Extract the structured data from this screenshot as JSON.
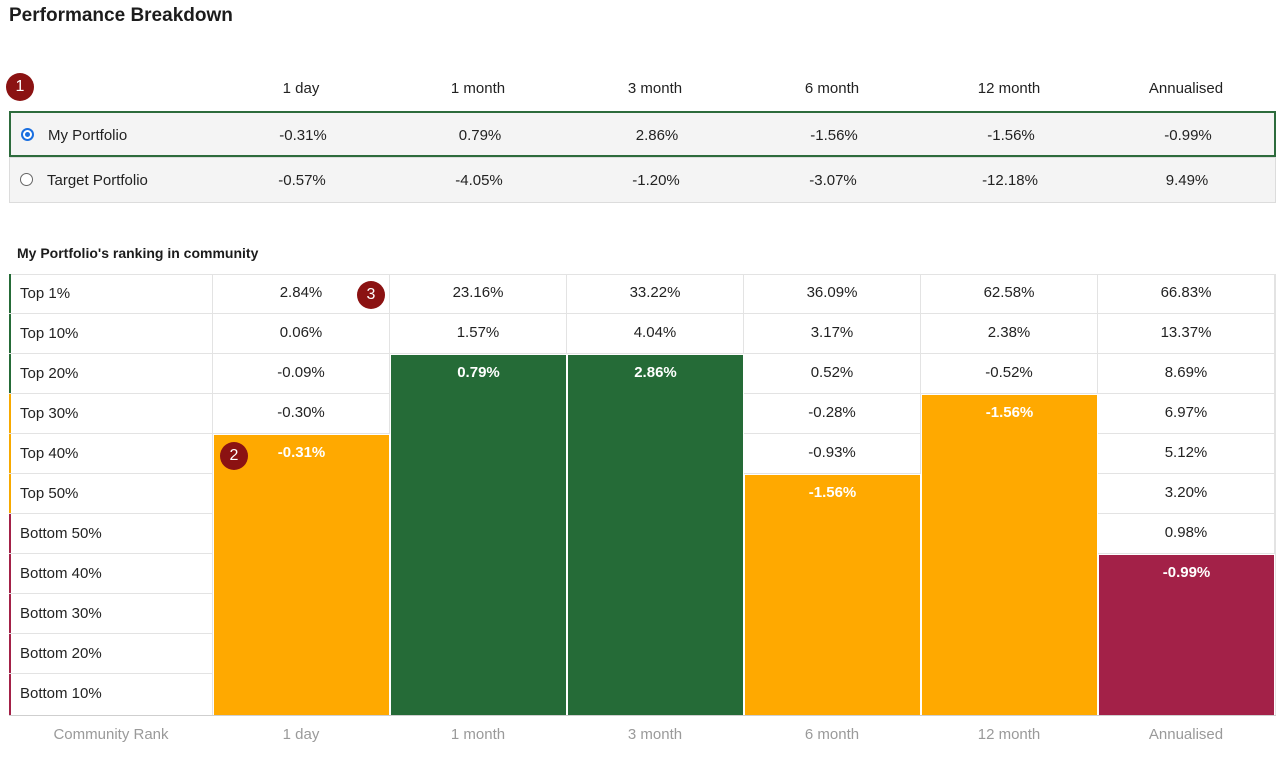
{
  "page_title": "Performance Breakdown",
  "badges": [
    "1",
    "2",
    "3"
  ],
  "periods": [
    "1 day",
    "1 month",
    "3 month",
    "6 month",
    "12 month",
    "Annualised"
  ],
  "portfolios": [
    {
      "name": "My Portfolio",
      "selected": true,
      "values": [
        "-0.31%",
        "0.79%",
        "2.86%",
        "-1.56%",
        "-1.56%",
        "-0.99%"
      ]
    },
    {
      "name": "Target Portfolio",
      "selected": false,
      "values": [
        "-0.57%",
        "-4.05%",
        "-1.20%",
        "-3.07%",
        "-12.18%",
        "9.49%"
      ]
    }
  ],
  "ranking": {
    "title": "My Portfolio's ranking in community",
    "footer_label": "Community Rank",
    "tiers": [
      "Top 1%",
      "Top 10%",
      "Top 20%",
      "Top 30%",
      "Top 40%",
      "Top 50%",
      "Bottom 50%",
      "Bottom 40%",
      "Bottom 30%",
      "Bottom 20%",
      "Bottom 10%"
    ],
    "tier_colors": [
      "#256b37",
      "#256b37",
      "#256b37",
      "#f7a900",
      "#f7a900",
      "#f7a900",
      "#a32148",
      "#a32148",
      "#a32148",
      "#a32148",
      "#a32148"
    ],
    "thresholds": [
      [
        "2.84%",
        "0.06%",
        "-0.09%",
        "-0.30%"
      ],
      [
        "23.16%",
        "1.57%"
      ],
      [
        "33.22%",
        "4.04%"
      ],
      [
        "36.09%",
        "3.17%",
        "0.52%",
        "-0.28%",
        "-0.93%"
      ],
      [
        "62.58%",
        "2.38%",
        "-0.52%"
      ],
      [
        "66.83%",
        "13.37%",
        "8.69%",
        "6.97%",
        "5.12%",
        "3.20%",
        "0.98%"
      ]
    ],
    "positions": [
      {
        "value": "-0.31%",
        "tier_index": 4,
        "color": "#ffa900"
      },
      {
        "value": "0.79%",
        "tier_index": 2,
        "color": "#256b37"
      },
      {
        "value": "2.86%",
        "tier_index": 2,
        "color": "#256b37"
      },
      {
        "value": "-1.56%",
        "tier_index": 5,
        "color": "#ffa900"
      },
      {
        "value": "-1.56%",
        "tier_index": 3,
        "color": "#ffa900"
      },
      {
        "value": "-0.99%",
        "tier_index": 7,
        "color": "#a32148"
      }
    ]
  }
}
